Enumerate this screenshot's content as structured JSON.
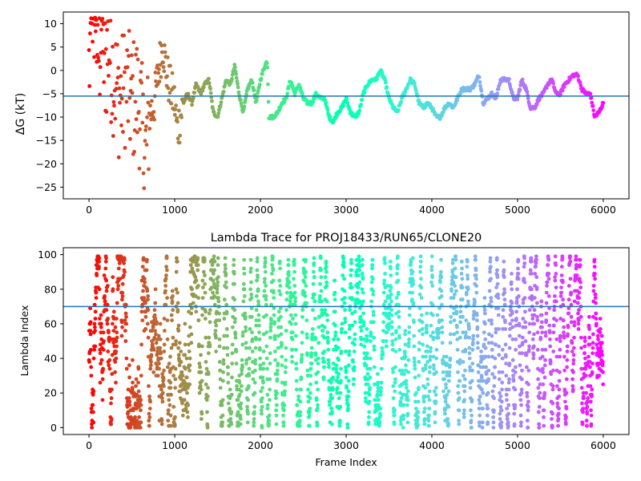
{
  "chart_data": [
    {
      "type": "scatter",
      "title": "",
      "xlabel": "",
      "ylabel": "ΔG (kT)",
      "xlim": [
        -300,
        6300
      ],
      "ylim": [
        -27.5,
        12.5
      ],
      "xticks": [
        0,
        1000,
        2000,
        3000,
        4000,
        5000,
        6000
      ],
      "yticks": [
        10,
        5,
        0,
        -5,
        -10,
        -15,
        -20,
        -25
      ],
      "hline": -5.5,
      "hline_color": "#1f77b4",
      "colormap": "rainbow (reversed: red at frame 0, violet at frame 6000)",
      "grid": false,
      "trace": [
        [
          0,
          0
        ],
        [
          30,
          10.5
        ],
        [
          60,
          11
        ],
        [
          90,
          8
        ],
        [
          120,
          3
        ],
        [
          150,
          10
        ],
        [
          170,
          3
        ],
        [
          200,
          2
        ],
        [
          230,
          6
        ],
        [
          260,
          2
        ],
        [
          300,
          -2
        ],
        [
          340,
          -5
        ],
        [
          380,
          -6
        ],
        [
          420,
          -3
        ],
        [
          460,
          -5
        ],
        [
          500,
          -7
        ],
        [
          550,
          -5
        ],
        [
          600,
          -8
        ],
        [
          650,
          -20
        ],
        [
          700,
          -10
        ],
        [
          760,
          -7
        ],
        [
          820,
          1
        ],
        [
          860,
          6
        ],
        [
          900,
          0
        ],
        [
          950,
          -4
        ],
        [
          1000,
          -7
        ],
        [
          1030,
          -13
        ],
        [
          1100,
          -7
        ],
        [
          1150,
          -5
        ],
        [
          1200,
          -7
        ],
        [
          1250,
          -3
        ],
        [
          1300,
          -5
        ],
        [
          1350,
          -3
        ],
        [
          1400,
          -2
        ],
        [
          1450,
          -9
        ],
        [
          1500,
          -10
        ],
        [
          1550,
          -6
        ],
        [
          1600,
          -2
        ],
        [
          1650,
          -3
        ],
        [
          1700,
          1
        ],
        [
          1750,
          -5
        ],
        [
          1800,
          -9
        ],
        [
          1850,
          -4
        ],
        [
          1900,
          -2
        ],
        [
          1950,
          -7
        ],
        [
          2000,
          -2
        ],
        [
          2050,
          1
        ],
        [
          2080,
          2
        ],
        [
          2100,
          -10
        ],
        [
          2150,
          -10
        ],
        [
          2200,
          -9
        ],
        [
          2250,
          -7
        ],
        [
          2300,
          -6
        ],
        [
          2350,
          -2
        ],
        [
          2400,
          -5
        ],
        [
          2450,
          -3
        ],
        [
          2500,
          -6
        ],
        [
          2550,
          -7
        ],
        [
          2600,
          -7
        ],
        [
          2650,
          -5
        ],
        [
          2700,
          -6
        ],
        [
          2750,
          -6
        ],
        [
          2800,
          -10
        ],
        [
          2850,
          -11
        ],
        [
          2900,
          -9
        ],
        [
          2950,
          -8
        ],
        [
          3000,
          -6
        ],
        [
          3050,
          -9
        ],
        [
          3100,
          -10
        ],
        [
          3150,
          -9
        ],
        [
          3200,
          -5
        ],
        [
          3250,
          -3
        ],
        [
          3300,
          -2
        ],
        [
          3350,
          -2
        ],
        [
          3400,
          0
        ],
        [
          3450,
          -2
        ],
        [
          3500,
          -6
        ],
        [
          3550,
          -8
        ],
        [
          3600,
          -9
        ],
        [
          3650,
          -6
        ],
        [
          3700,
          -4
        ],
        [
          3750,
          -2
        ],
        [
          3800,
          -3
        ],
        [
          3850,
          -7
        ],
        [
          3900,
          -8
        ],
        [
          3950,
          -7
        ],
        [
          4000,
          -8
        ],
        [
          4050,
          -10
        ],
        [
          4100,
          -10
        ],
        [
          4150,
          -8
        ],
        [
          4200,
          -7
        ],
        [
          4250,
          -8
        ],
        [
          4300,
          -6
        ],
        [
          4350,
          -4
        ],
        [
          4400,
          -4
        ],
        [
          4450,
          -4
        ],
        [
          4500,
          -3
        ],
        [
          4550,
          -1
        ],
        [
          4600,
          -7
        ],
        [
          4650,
          -6
        ],
        [
          4700,
          -5
        ],
        [
          4750,
          -6
        ],
        [
          4800,
          -2
        ],
        [
          4850,
          -2
        ],
        [
          4900,
          -2
        ],
        [
          4950,
          -6
        ],
        [
          5000,
          -6
        ],
        [
          5050,
          -2
        ],
        [
          5100,
          -4
        ],
        [
          5150,
          -8
        ],
        [
          5200,
          -8
        ],
        [
          5250,
          -6
        ],
        [
          5300,
          -5
        ],
        [
          5350,
          -3
        ],
        [
          5400,
          -2
        ],
        [
          5450,
          -5
        ],
        [
          5500,
          -5
        ],
        [
          5550,
          -3
        ],
        [
          5600,
          -2
        ],
        [
          5650,
          -1
        ],
        [
          5700,
          -1
        ],
        [
          5750,
          -4
        ],
        [
          5800,
          -5
        ],
        [
          5850,
          -5
        ],
        [
          5900,
          -10
        ],
        [
          5950,
          -9
        ],
        [
          6000,
          -7
        ]
      ]
    },
    {
      "type": "scatter",
      "title": "Lambda Trace for PROJ18433/RUN65/CLONE20",
      "xlabel": "Frame Index",
      "ylabel": "Lambda Index",
      "xlim": [
        -300,
        6300
      ],
      "ylim": [
        -4,
        104
      ],
      "xticks": [
        0,
        1000,
        2000,
        3000,
        4000,
        5000,
        6000
      ],
      "yticks": [
        0,
        20,
        40,
        60,
        80,
        100
      ],
      "hline": 70,
      "hline_color": "#1f77b4",
      "colormap": "rainbow (reversed: red at frame 0, violet at frame 6000)",
      "grid": false,
      "n_points": 6000,
      "lambda_range": [
        0,
        99
      ]
    }
  ]
}
